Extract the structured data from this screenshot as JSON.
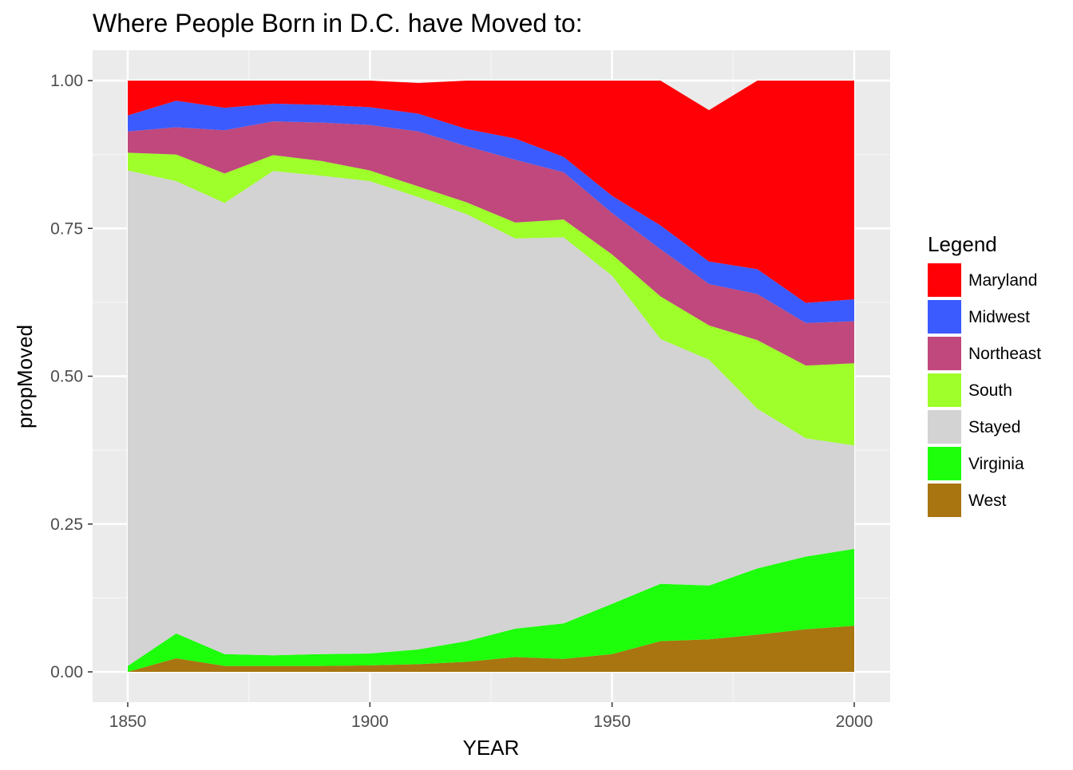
{
  "chart_data": {
    "type": "area",
    "title": "Where People Born in D.C. have Moved to:",
    "xlabel": "YEAR",
    "ylabel": "propMoved",
    "xlim": [
      1850,
      2000
    ],
    "ylim": [
      0,
      1
    ],
    "x_ticks": [
      "1850",
      "1900",
      "1950",
      "2000"
    ],
    "y_ticks": [
      "0.00",
      "0.25",
      "0.50",
      "0.75",
      "1.00"
    ],
    "grid": true,
    "stacked": true,
    "legend": {
      "title": "Legend",
      "position": "right"
    },
    "x": [
      1850,
      1860,
      1870,
      1880,
      1890,
      1900,
      1910,
      1920,
      1930,
      1940,
      1950,
      1960,
      1970,
      1980,
      1990,
      2000
    ],
    "series": [
      {
        "name": "West",
        "color": "#A87510",
        "values": [
          0.0,
          0.023,
          0.01,
          0.01,
          0.01,
          0.011,
          0.013,
          0.017,
          0.025,
          0.022,
          0.03,
          0.052,
          0.055,
          0.063,
          0.072,
          0.078
        ]
      },
      {
        "name": "Virginia",
        "color": "#1EFF0C",
        "values": [
          0.01,
          0.042,
          0.02,
          0.018,
          0.02,
          0.02,
          0.025,
          0.035,
          0.048,
          0.06,
          0.085,
          0.097,
          0.091,
          0.112,
          0.123,
          0.13
        ]
      },
      {
        "name": "Stayed",
        "color": "#D3D3D3",
        "values": [
          0.838,
          0.765,
          0.763,
          0.819,
          0.809,
          0.799,
          0.765,
          0.722,
          0.66,
          0.653,
          0.555,
          0.414,
          0.382,
          0.27,
          0.2,
          0.175
        ]
      },
      {
        "name": "South",
        "color": "#9EFF2A",
        "values": [
          0.03,
          0.045,
          0.05,
          0.027,
          0.025,
          0.018,
          0.018,
          0.02,
          0.027,
          0.03,
          0.036,
          0.072,
          0.058,
          0.116,
          0.123,
          0.139
        ]
      },
      {
        "name": "Northeast",
        "color": "#C0487C",
        "values": [
          0.036,
          0.046,
          0.073,
          0.057,
          0.065,
          0.077,
          0.093,
          0.095,
          0.106,
          0.08,
          0.07,
          0.08,
          0.07,
          0.078,
          0.072,
          0.071
        ]
      },
      {
        "name": "Midwest",
        "color": "#3B5BFF",
        "values": [
          0.027,
          0.045,
          0.038,
          0.03,
          0.03,
          0.03,
          0.03,
          0.029,
          0.036,
          0.026,
          0.029,
          0.04,
          0.038,
          0.042,
          0.034,
          0.037
        ]
      },
      {
        "name": "Maryland",
        "color": "#FF0007",
        "values": [
          0.059,
          0.034,
          0.046,
          0.039,
          0.041,
          0.045,
          0.052,
          0.082,
          0.098,
          0.129,
          0.195,
          0.245,
          0.256,
          0.319,
          0.376,
          0.37
        ]
      }
    ]
  }
}
